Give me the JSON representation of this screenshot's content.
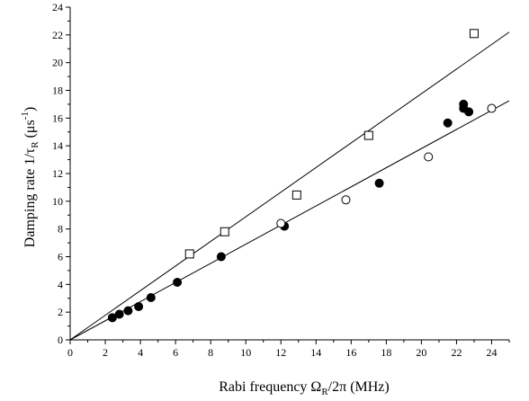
{
  "chart_data": {
    "type": "scatter",
    "xlabel": {
      "main": "Rabi frequency Ω",
      "sub": "R",
      "rest": "/2π (MHz)"
    },
    "ylabel": {
      "main": "Damping rate 1/τ",
      "sub": "R",
      "unit_open": " (μs",
      "sup": "-1",
      "unit_close": ")"
    },
    "xlim": [
      0,
      25
    ],
    "ylim": [
      0,
      24
    ],
    "x_ticks": [
      0,
      2,
      4,
      6,
      8,
      10,
      12,
      14,
      16,
      18,
      20,
      22,
      24
    ],
    "y_ticks": [
      0,
      2,
      4,
      6,
      8,
      10,
      12,
      14,
      16,
      18,
      20,
      22,
      24
    ],
    "grid": false,
    "series": [
      {
        "marker": "filled-circle",
        "points": [
          [
            2.4,
            1.6
          ],
          [
            2.8,
            1.85
          ],
          [
            3.3,
            2.1
          ],
          [
            3.9,
            2.4
          ],
          [
            4.6,
            3.05
          ],
          [
            6.1,
            4.15
          ],
          [
            8.6,
            6.0
          ],
          [
            12.2,
            8.2
          ],
          [
            17.6,
            11.3
          ],
          [
            21.5,
            15.65
          ],
          [
            22.4,
            16.7
          ],
          [
            22.4,
            17.0
          ],
          [
            22.7,
            16.45
          ]
        ]
      },
      {
        "marker": "open-circle",
        "points": [
          [
            12.0,
            8.4
          ],
          [
            15.7,
            10.1
          ],
          [
            20.4,
            13.2
          ],
          [
            24.0,
            16.7
          ]
        ]
      },
      {
        "marker": "open-square",
        "points": [
          [
            6.8,
            6.2
          ],
          [
            8.8,
            7.8
          ],
          [
            12.9,
            10.45
          ],
          [
            17.0,
            14.75
          ],
          [
            23.0,
            22.1
          ]
        ]
      }
    ],
    "fit_lines": [
      {
        "slope": 0.69,
        "intercept": 0
      },
      {
        "slope": 0.888,
        "intercept": 0
      }
    ]
  }
}
